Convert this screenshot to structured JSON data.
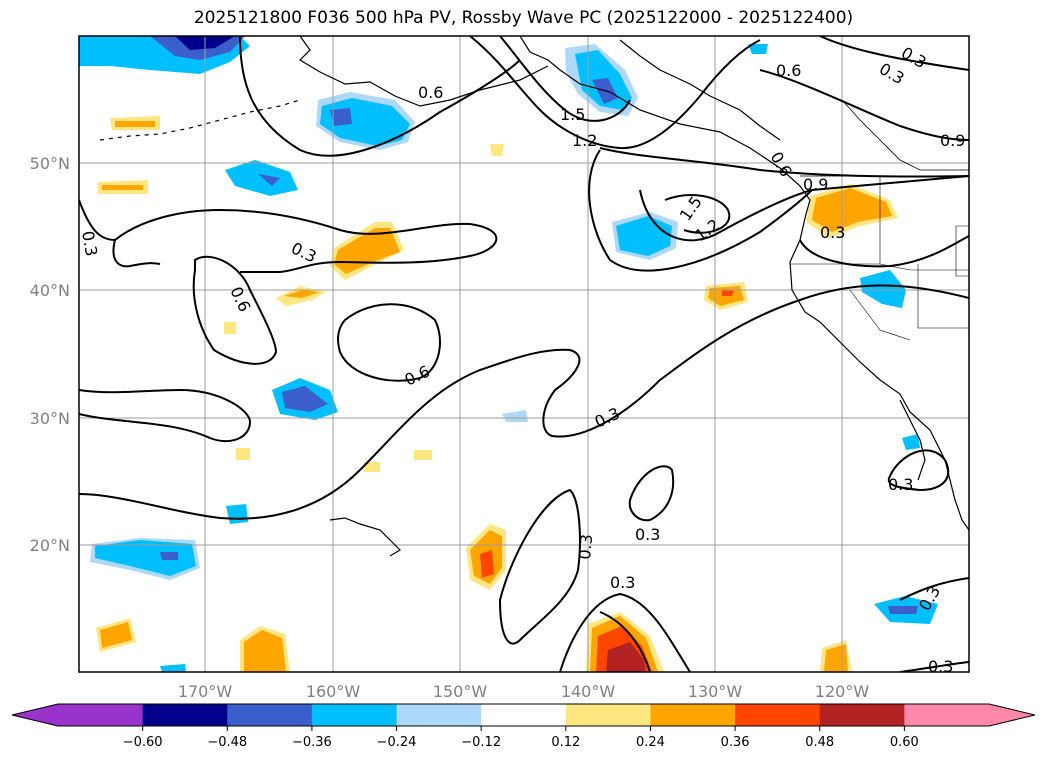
{
  "title": "2025121800 F036 500 hPa PV, Rossby Wave PC (2025122000 - 2025122400)",
  "lon_labels": [
    "170°W",
    "160°W",
    "150°W",
    "140°W",
    "130°W",
    "120°W"
  ],
  "lat_labels": [
    "50°N",
    "40°N",
    "30°N",
    "20°N"
  ],
  "colorbar": {
    "ticks": [
      "−0.60",
      "−0.48",
      "−0.36",
      "−0.24",
      "−0.12",
      "0.12",
      "0.24",
      "0.36",
      "0.48",
      "0.60"
    ],
    "colors": [
      "#9933cc",
      "#00008b",
      "#3a5fcd",
      "#00bfff",
      "#add8f7",
      "#ffffff",
      "#ffe680",
      "#ffa500",
      "#ff4500",
      "#b22222",
      "#ff88aa"
    ]
  },
  "contour_labels": [
    "0.6",
    "1.5",
    "1.2",
    "0.3",
    "0.6",
    "0.9",
    "0.3",
    "0.6",
    "0.6",
    "0.3",
    "0.3",
    "0.3",
    "0.3",
    "0.3",
    "1.5",
    "1.2",
    "0.3",
    "0.3",
    "0.9",
    "0.3",
    "0.3",
    "0.3",
    "0.6"
  ]
}
